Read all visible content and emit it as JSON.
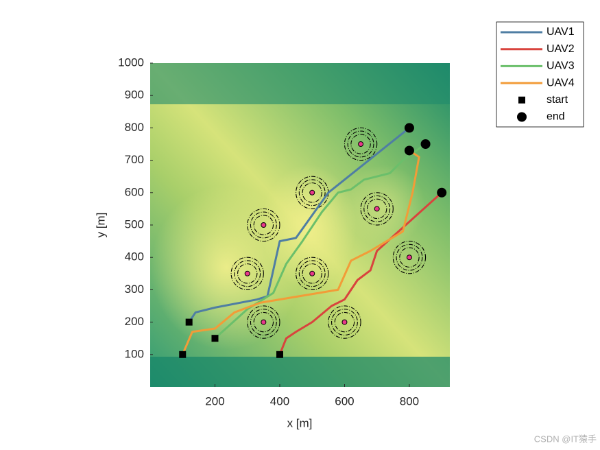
{
  "chart_data": {
    "type": "line",
    "xlabel": "x [m]",
    "ylabel": "y [m]",
    "xlim": [
      0,
      925
    ],
    "ylim": [
      0,
      1000
    ],
    "xticks": [
      200,
      400,
      600,
      800
    ],
    "yticks": [
      100,
      200,
      300,
      400,
      500,
      600,
      700,
      800,
      900,
      1000
    ],
    "series": [
      {
        "name": "UAV1",
        "color": "#4f7ea3",
        "x": [
          120,
          140,
          200,
          330,
          362,
          400,
          450,
          550,
          800
        ],
        "y": [
          200,
          230,
          245,
          270,
          280,
          450,
          460,
          600,
          800
        ]
      },
      {
        "name": "UAV2",
        "color": "#d9433d",
        "x": [
          400,
          420,
          450,
          500,
          560,
          600,
          640,
          680,
          700,
          900
        ],
        "y": [
          100,
          150,
          170,
          200,
          250,
          270,
          330,
          360,
          420,
          600
        ]
      },
      {
        "name": "UAV3",
        "color": "#6bbf6b",
        "x": [
          200,
          300,
          380,
          420,
          470,
          530,
          580,
          620,
          660,
          740,
          780,
          850
        ],
        "y": [
          150,
          240,
          290,
          380,
          450,
          540,
          600,
          610,
          640,
          660,
          700,
          750
        ]
      },
      {
        "name": "UAV4",
        "color": "#f29c38",
        "x": [
          100,
          130,
          200,
          260,
          340,
          580,
          620,
          680,
          780,
          810,
          830,
          800
        ],
        "y": [
          100,
          170,
          180,
          230,
          260,
          300,
          390,
          420,
          480,
          600,
          710,
          730
        ]
      }
    ],
    "start_label": "start",
    "end_label": "end",
    "threats": {
      "x": [
        650,
        500,
        700,
        350,
        800,
        300,
        500,
        350,
        600
      ],
      "y": [
        750,
        600,
        550,
        500,
        400,
        350,
        350,
        200,
        200
      ]
    },
    "threat_radii": [
      30,
      40,
      50
    ]
  },
  "watermark": "CSDN @IT猿手"
}
